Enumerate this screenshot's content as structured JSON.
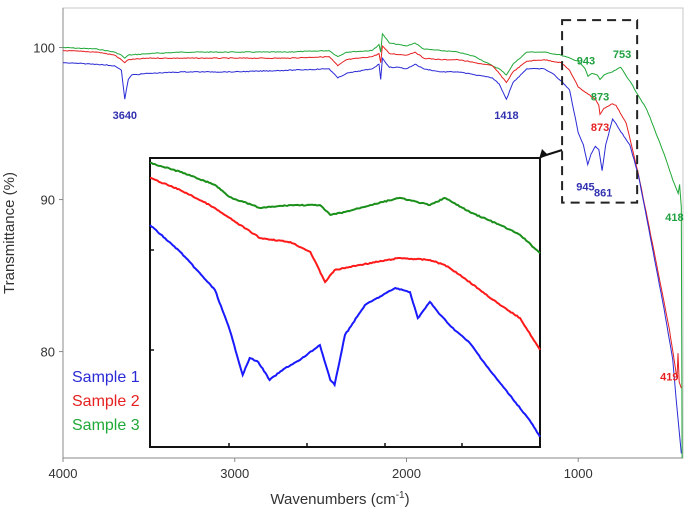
{
  "chart_data": {
    "type": "line",
    "title": "",
    "xlabel": "Wavenumbers (cm",
    "xlabel_sup": "-1",
    "xlabel_end": ")",
    "ylabel": "Transmittance (%)",
    "xlim": [
      4000,
      390
    ],
    "ylim": [
      73,
      102.6
    ],
    "xticks": [
      4000,
      3000,
      2000,
      1000
    ],
    "yticks": [
      100,
      90,
      80
    ],
    "grid": false,
    "legend_placement": "bottom-left",
    "series": [
      {
        "name": "Sample 1",
        "color": "#2b2bd6",
        "x": [
          4000,
          3800,
          3700,
          3660,
          3640,
          3620,
          3600,
          3500,
          3300,
          3000,
          2700,
          2450,
          2400,
          2350,
          2200,
          2160,
          2150,
          2140,
          2100,
          2050,
          2000,
          1950,
          1900,
          1800,
          1700,
          1600,
          1500,
          1460,
          1418,
          1380,
          1300,
          1200,
          1150,
          1100,
          1050,
          1000,
          970,
          945,
          925,
          900,
          880,
          861,
          840,
          800,
          780,
          760,
          700,
          650,
          600,
          500,
          450,
          430,
          400
        ],
        "y": [
          99.0,
          98.9,
          98.8,
          98.5,
          96.6,
          97.9,
          98.2,
          98.3,
          98.4,
          98.4,
          98.5,
          98.6,
          98.0,
          98.3,
          98.6,
          98.9,
          97.9,
          99.3,
          98.7,
          98.7,
          98.6,
          98.9,
          98.6,
          98.4,
          98.4,
          98.2,
          98.0,
          97.6,
          96.6,
          97.7,
          98.6,
          98.6,
          98.3,
          97.8,
          97.2,
          94.4,
          93.6,
          92.3,
          93.0,
          93.5,
          93.3,
          91.9,
          93.6,
          95.3,
          95.0,
          94.6,
          93.6,
          91.6,
          88.7,
          82.8,
          79.5,
          76.9,
          73.3
        ]
      },
      {
        "name": "Sample 2",
        "color": "#e62020",
        "x": [
          4000,
          3800,
          3700,
          3660,
          3640,
          3620,
          3500,
          3300,
          3000,
          2700,
          2450,
          2400,
          2350,
          2200,
          2160,
          2150,
          2140,
          2100,
          2000,
          1950,
          1900,
          1800,
          1700,
          1600,
          1500,
          1460,
          1418,
          1380,
          1300,
          1200,
          1100,
          1050,
          1000,
          950,
          900,
          880,
          873,
          850,
          800,
          780,
          720,
          650,
          550,
          470,
          430,
          425,
          419,
          412,
          400
        ],
        "y": [
          99.8,
          99.7,
          99.5,
          99.2,
          99.0,
          99.2,
          99.3,
          99.3,
          99.3,
          99.3,
          99.4,
          98.8,
          99.2,
          99.4,
          99.6,
          99.0,
          100.1,
          99.6,
          99.5,
          99.7,
          99.3,
          99.2,
          99.2,
          99.0,
          98.8,
          98.3,
          97.7,
          98.4,
          99.1,
          99.2,
          99.0,
          98.5,
          97.4,
          97.0,
          96.6,
          96.2,
          95.6,
          96.0,
          96.3,
          96.2,
          95.0,
          91.7,
          86.1,
          81.5,
          78.6,
          78.2,
          79.9,
          78.0,
          77.6
        ]
      },
      {
        "name": "Sample 3",
        "color": "#20a838",
        "x": [
          4000,
          3800,
          3700,
          3660,
          3640,
          3620,
          3500,
          3300,
          3000,
          2700,
          2450,
          2400,
          2350,
          2200,
          2160,
          2150,
          2140,
          2100,
          2000,
          1950,
          1900,
          1800,
          1700,
          1600,
          1500,
          1460,
          1418,
          1380,
          1300,
          1200,
          1100,
          1000,
          960,
          943,
          920,
          890,
          873,
          850,
          800,
          753,
          700,
          600,
          500,
          450,
          425,
          418,
          410,
          400,
          395
        ],
        "y": [
          100.0,
          99.9,
          99.7,
          99.5,
          99.3,
          99.5,
          99.6,
          99.7,
          99.7,
          99.7,
          99.8,
          99.4,
          99.7,
          99.8,
          100.2,
          99.7,
          100.9,
          100.3,
          100.1,
          100.3,
          99.9,
          99.8,
          99.7,
          99.4,
          98.8,
          98.6,
          98.2,
          98.9,
          99.7,
          99.7,
          99.5,
          99.1,
          98.6,
          98.1,
          98.3,
          98.2,
          97.9,
          98.2,
          98.4,
          98.7,
          97.8,
          95.9,
          93.0,
          91.3,
          90.6,
          90.4,
          91.0,
          89.5,
          73.0
        ]
      }
    ],
    "annotations": [
      {
        "text": "3640",
        "x": 3640,
        "y": 95.3,
        "color": "#3030b0"
      },
      {
        "text": "1418",
        "x": 1418,
        "y": 95.3,
        "color": "#3030b0"
      },
      {
        "text": "943",
        "x": 955,
        "y": 98.9,
        "color": "#20a040"
      },
      {
        "text": "753",
        "x": 745,
        "y": 99.3,
        "color": "#20a040"
      },
      {
        "text": "873",
        "x": 873,
        "y": 96.5,
        "color": "#20a040"
      },
      {
        "text": "873",
        "x": 873,
        "y": 94.5,
        "color": "#e62020"
      },
      {
        "text": "945",
        "x": 958,
        "y": 90.6,
        "color": "#3030b0"
      },
      {
        "text": "861",
        "x": 855,
        "y": 90.2,
        "color": "#3030b0"
      },
      {
        "text": "418",
        "x": 440,
        "y": 88.6,
        "color": "#20a040"
      },
      {
        "text": "419",
        "x": 470,
        "y": 78.1,
        "color": "#e62020"
      }
    ],
    "zoom_box": {
      "x": [
        1094,
        657
      ],
      "y": [
        89.8,
        101.8
      ]
    },
    "inset": {
      "xlim": [
        1100,
        650
      ],
      "ylim": [
        0,
        100
      ],
      "series": [
        {
          "name": "Sample 1",
          "color": "#1a1aff",
          "x": [
            1100,
            1065,
            1025,
            1008,
            993,
            985,
            975,
            962,
            944,
            927,
            904,
            892,
            887,
            875,
            852,
            817,
            800,
            791,
            777,
            765,
            752,
            731,
            708,
            685,
            662,
            650
          ],
          "y": [
            76.8,
            67.5,
            54.3,
            40.5,
            24.9,
            30.8,
            29.4,
            23.2,
            27.3,
            30.1,
            35.3,
            23.2,
            21.5,
            38.8,
            49.1,
            55.0,
            53.6,
            44.6,
            50.2,
            45.7,
            41.5,
            36.0,
            26.6,
            18.0,
            9.3,
            3.5
          ]
        },
        {
          "name": "Sample 2",
          "color": "#ff1a1a",
          "x": [
            1100,
            1065,
            1031,
            996,
            973,
            938,
            915,
            898,
            887,
            858,
            812,
            777,
            760,
            742,
            719,
            696,
            673,
            650
          ],
          "y": [
            93.1,
            88.9,
            83.7,
            76.8,
            72.3,
            70.9,
            67.5,
            57.1,
            61.2,
            63.0,
            65.4,
            64.7,
            63.0,
            59.5,
            54.3,
            49.1,
            44.6,
            33.6
          ]
        },
        {
          "name": "Sample 3",
          "color": "#1a8f1a",
          "x": [
            1100,
            1065,
            1025,
            1008,
            973,
            938,
            904,
            892,
            875,
            846,
            812,
            777,
            760,
            731,
            696,
            673,
            650
          ],
          "y": [
            98.3,
            95.2,
            90.7,
            86.5,
            82.7,
            83.7,
            83.7,
            80.3,
            81.3,
            83.7,
            86.2,
            83.7,
            86.2,
            81.3,
            76.8,
            73.4,
            67.1
          ]
        }
      ]
    },
    "legend": [
      {
        "label": "Sample 1",
        "color": "#2b2bd6"
      },
      {
        "label": "Sample 2",
        "color": "#e62020"
      },
      {
        "label": "Sample 3",
        "color": "#20a838"
      }
    ]
  }
}
